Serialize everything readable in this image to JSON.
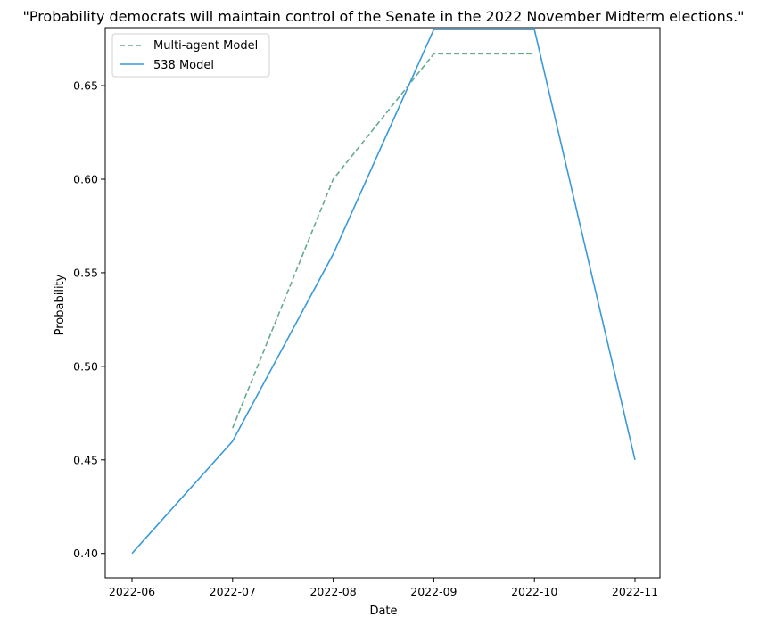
{
  "chart_data": {
    "type": "line",
    "title": "\"Probability democrats will maintain control of the Senate in the 2022 November Midterm elections.\"",
    "xlabel": "Date",
    "ylabel": "Probability",
    "x_ticks": [
      "2022-06",
      "2022-07",
      "2022-08",
      "2022-09",
      "2022-10",
      "2022-11"
    ],
    "y_ticks": [
      "0.40",
      "0.45",
      "0.50",
      "0.55",
      "0.60",
      "0.65"
    ],
    "ylim": [
      0.387,
      0.681
    ],
    "grid": false,
    "legend_position": "top-left",
    "series": [
      {
        "name": "Multi-agent Model",
        "style": "dashed",
        "color": "#66aa90",
        "x": [
          "2022-07",
          "2022-08",
          "2022-09",
          "2022-10"
        ],
        "values": [
          0.467,
          0.6,
          0.667,
          0.667
        ]
      },
      {
        "name": "538 Model",
        "style": "solid",
        "color": "#3a9ad9",
        "x": [
          "2022-06",
          "2022-07",
          "2022-08",
          "2022-09",
          "2022-10",
          "2022-11"
        ],
        "values": [
          0.4,
          0.46,
          0.56,
          0.68,
          0.68,
          0.45
        ]
      }
    ]
  }
}
